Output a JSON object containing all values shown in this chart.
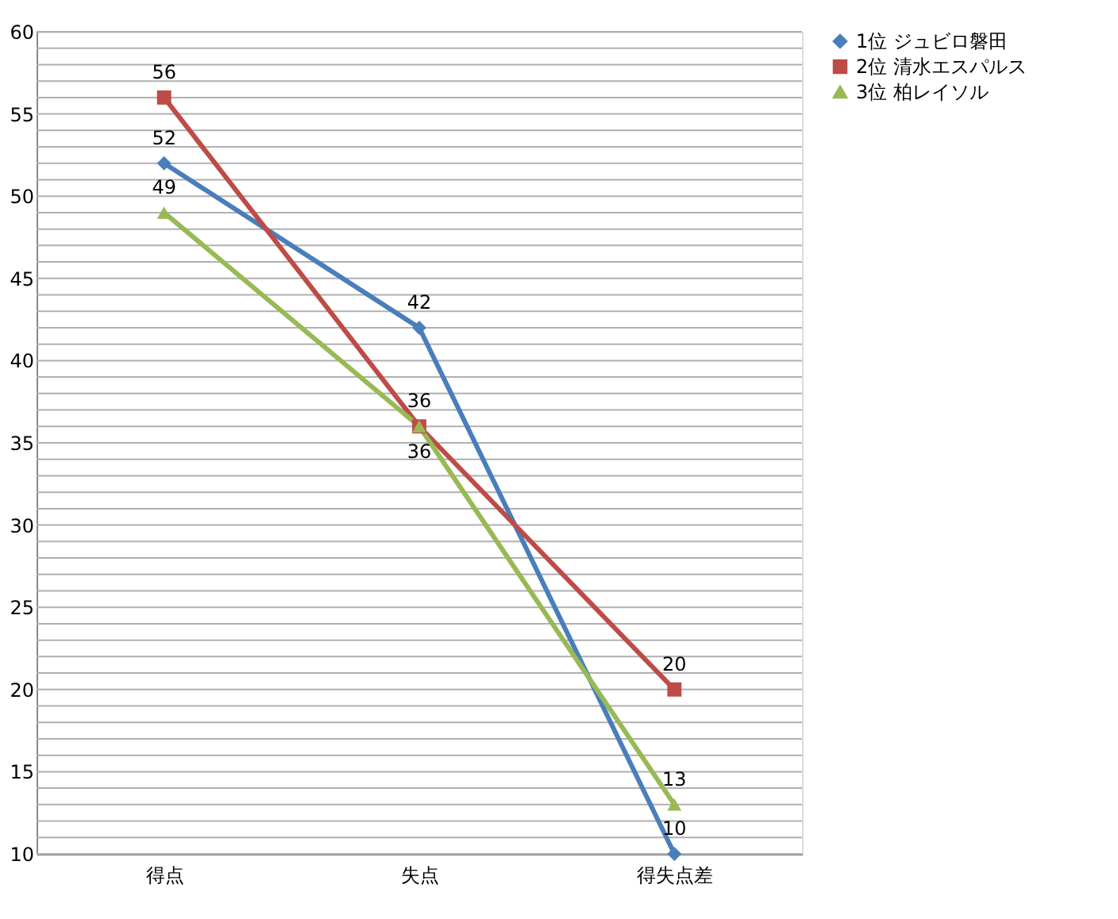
{
  "chart_data": {
    "type": "line",
    "categories": [
      "得点",
      "失点",
      "得失点差"
    ],
    "series": [
      {
        "name": "1位  ジュビロ磐田",
        "color": "#4a7ebb",
        "marker": "diamond",
        "values": [
          52,
          42,
          10
        ]
      },
      {
        "name": "2位  清水エスパルス",
        "color": "#be4b48",
        "marker": "square",
        "values": [
          56,
          36,
          20
        ]
      },
      {
        "name": "3位  柏レイソル",
        "color": "#98b954",
        "marker": "triangle",
        "values": [
          49,
          36,
          13
        ]
      }
    ],
    "ylim": [
      10,
      60
    ],
    "yticks": [
      10,
      {
        "value": 11,
        "label": null
      },
      {
        "value": 12,
        "label": null
      },
      {
        "value": 13,
        "label": null
      },
      {
        "value": 14,
        "label": null
      },
      15,
      {
        "value": 16,
        "label": null
      },
      {
        "value": 17,
        "label": null
      },
      {
        "value": 18,
        "label": null
      },
      {
        "value": 19,
        "label": null
      },
      20,
      {
        "value": 21,
        "label": null
      },
      {
        "value": 22,
        "label": null
      },
      {
        "value": 23,
        "label": null
      },
      {
        "value": 24,
        "label": null
      },
      25,
      {
        "value": 26,
        "label": null
      },
      {
        "value": 27,
        "label": null
      },
      {
        "value": 28,
        "label": null
      },
      {
        "value": 29,
        "label": null
      },
      30,
      {
        "value": 31,
        "label": null
      },
      {
        "value": 32,
        "label": null
      },
      {
        "value": 33,
        "label": null
      },
      {
        "value": 34,
        "label": null
      },
      35,
      {
        "value": 36,
        "label": null
      },
      {
        "value": 37,
        "label": null
      },
      {
        "value": 38,
        "label": null
      },
      {
        "value": 39,
        "label": null
      },
      40,
      {
        "value": 41,
        "label": null
      },
      {
        "value": 42,
        "label": null
      },
      {
        "value": 43,
        "label": null
      },
      {
        "value": 44,
        "label": null
      },
      45,
      {
        "value": 46,
        "label": null
      },
      {
        "value": 47,
        "label": null
      },
      {
        "value": 48,
        "label": null
      },
      {
        "value": 49,
        "label": null
      },
      50,
      {
        "value": 51,
        "label": null
      },
      {
        "value": 52,
        "label": null
      },
      {
        "value": 53,
        "label": null
      },
      {
        "value": 54,
        "label": null
      },
      55,
      {
        "value": 56,
        "label": null
      },
      {
        "value": 57,
        "label": null
      },
      {
        "value": 58,
        "label": null
      },
      {
        "value": 59,
        "label": null
      },
      60
    ],
    "grid": "y",
    "legend": "right",
    "data_labels": true,
    "line_style": "solid"
  }
}
